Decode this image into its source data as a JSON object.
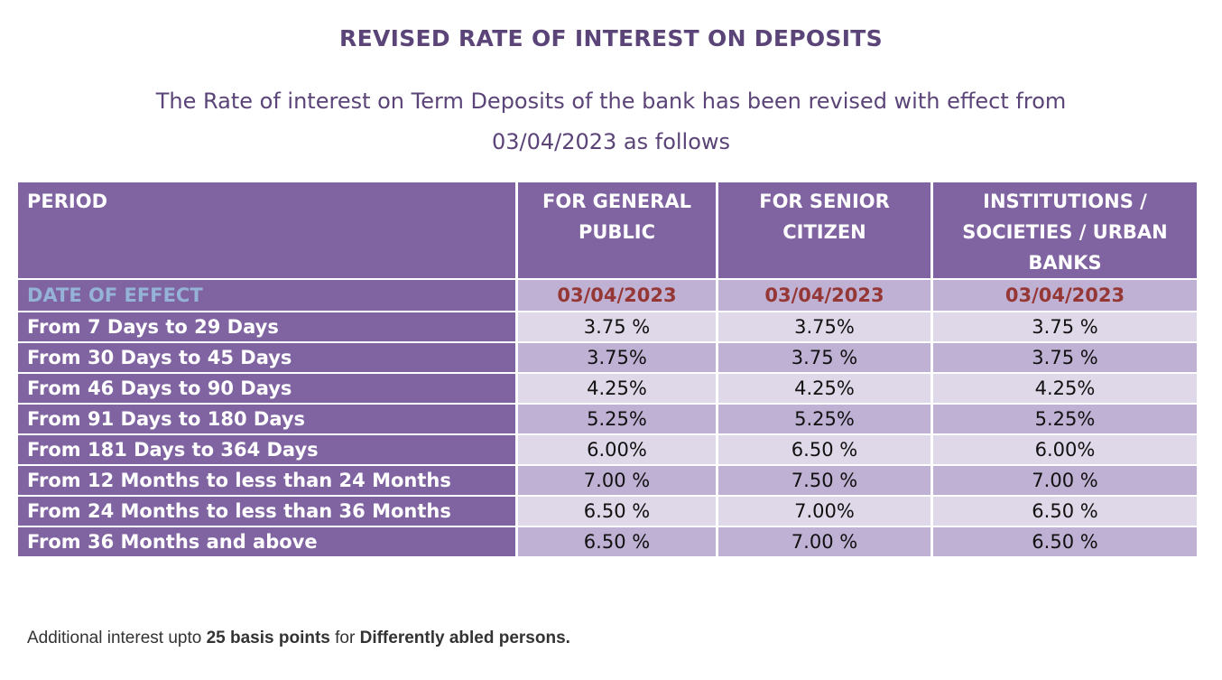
{
  "title": "REVISED RATE OF INTEREST ON DEPOSITS",
  "subtitle_line1": "The Rate of interest on Term Deposits of the bank has been revised with effect from",
  "subtitle_line2": "03/04/2023 as follows",
  "table": {
    "headers": {
      "period": "PERIOD",
      "general_line1": "FOR GENERAL",
      "general_line2": "PUBLIC",
      "senior_line1": "FOR SENIOR",
      "senior_line2": "CITIZEN",
      "inst_line1": "INSTITUTIONS /",
      "inst_line2": "SOCIETIES / URBAN",
      "inst_line3": "BANKS"
    },
    "date_row": {
      "label": "DATE OF EFFECT",
      "general": "03/04/2023",
      "senior": "03/04/2023",
      "institutions": "03/04/2023"
    },
    "rows": [
      {
        "period": "From 7 Days to 29 Days",
        "general": "3.75 %",
        "senior": "3.75%",
        "institutions": "3.75 %"
      },
      {
        "period": "From 30 Days to 45 Days",
        "general": "3.75%",
        "senior": "3.75 %",
        "institutions": "3.75 %"
      },
      {
        "period": "From 46 Days to 90 Days",
        "general": "4.25%",
        "senior": "4.25%",
        "institutions": "4.25%"
      },
      {
        "period": "From 91 Days to 180 Days",
        "general": "5.25%",
        "senior": "5.25%",
        "institutions": "5.25%"
      },
      {
        "period": "From 181 Days to 364 Days",
        "general": "6.00%",
        "senior": "6.50 %",
        "institutions": "6.00%"
      },
      {
        "period": "From 12 Months to less than 24 Months",
        "general": "7.00 %",
        "senior": "7.50 %",
        "institutions": "7.00 %"
      },
      {
        "period": "From 24 Months to less than 36 Months",
        "general": "6.50 %",
        "senior": "7.00%",
        "institutions": "6.50 %"
      },
      {
        "period": "From 36 Months and above",
        "general": "6.50 %",
        "senior": "7.00 %",
        "institutions": "6.50 %"
      }
    ]
  },
  "note": {
    "part1": "Additional interest upto ",
    "part2": "25 basis points",
    "part3": " for ",
    "part4": "Differently abled persons."
  },
  "colors": {
    "header_bg": "#8064a2",
    "row_light": "#dfd8e8",
    "row_dark": "#bfb1d4",
    "date_label": "#95b3d7",
    "date_value": "#953735",
    "title_text": "#5a4478"
  }
}
